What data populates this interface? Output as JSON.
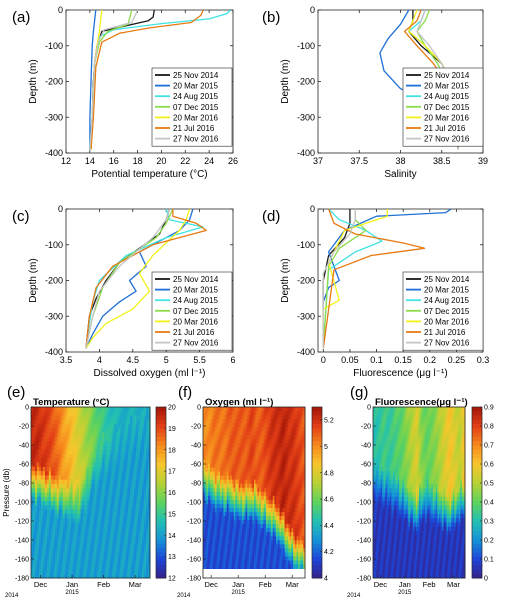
{
  "colors": {
    "series": [
      "#1a1a1a",
      "#1f6fd6",
      "#3fe3e3",
      "#8cdc4a",
      "#f2f21a",
      "#e87a12",
      "#c4c4c4"
    ],
    "colormap": [
      "#35228a",
      "#1d46d9",
      "#1594d6",
      "#22c0b2",
      "#5fd35c",
      "#b9d234",
      "#f8c62c",
      "#f6871c",
      "#e23e16",
      "#a11408"
    ]
  },
  "chart_data": [
    {
      "panel": "(a)",
      "type": "line",
      "xlabel": "Potential temperature (°C)",
      "ylabel": "Depth (m)",
      "xlim": [
        12,
        26
      ],
      "ylim": [
        -400,
        0
      ],
      "xticks": [
        "12",
        "14",
        "16",
        "18",
        "20",
        "22",
        "24",
        "26"
      ],
      "yticks": [
        "0",
        "-100",
        "-200",
        "-300",
        "-400"
      ],
      "legend": "bottom-right",
      "series": [
        {
          "name": "25 Nov 2014",
          "x": [
            19.4,
            19.3,
            18.9,
            15.0,
            14.6,
            14.4,
            14.3,
            14.2,
            14.0
          ],
          "y": [
            0,
            -20,
            -30,
            -60,
            -100,
            -150,
            -200,
            -300,
            -390
          ]
        },
        {
          "name": "20 Mar 2015",
          "x": [
            14.5,
            14.4,
            14.3,
            14.2,
            14.1,
            14.0,
            14.0
          ],
          "y": [
            0,
            -30,
            -60,
            -100,
            -200,
            -300,
            -390
          ]
        },
        {
          "name": "24 Aug 2015",
          "x": [
            25.8,
            25.5,
            24.0,
            20.0,
            16.0,
            14.8,
            14.4,
            14.2,
            14.0
          ],
          "y": [
            0,
            -10,
            -25,
            -38,
            -55,
            -75,
            -150,
            -300,
            -390
          ]
        },
        {
          "name": "07 Dec 2015",
          "x": [
            17.5,
            17.4,
            17.2,
            15.5,
            14.8,
            14.4,
            14.2,
            14.1
          ],
          "y": [
            0,
            -15,
            -40,
            -60,
            -90,
            -150,
            -300,
            -390
          ]
        },
        {
          "name": "20 Mar 2016",
          "x": [
            15.0,
            14.9,
            14.8,
            14.6,
            14.4,
            14.2,
            14.1
          ],
          "y": [
            0,
            -30,
            -60,
            -100,
            -150,
            -300,
            -390
          ]
        },
        {
          "name": "21 Jul 2016",
          "x": [
            23.5,
            23.3,
            22.5,
            19.0,
            16.5,
            15.0,
            14.5,
            14.3,
            14.1
          ],
          "y": [
            0,
            -15,
            -35,
            -50,
            -65,
            -90,
            -160,
            -300,
            -390
          ]
        },
        {
          "name": "27 Nov 2016",
          "x": [
            18.0,
            17.8,
            17.5,
            15.2,
            14.7,
            14.4,
            14.2,
            14.0
          ],
          "y": [
            0,
            -15,
            -35,
            -55,
            -90,
            -150,
            -300,
            -390
          ]
        }
      ]
    },
    {
      "panel": "(b)",
      "type": "line",
      "xlabel": "Salinity",
      "ylabel": "Depth (m)",
      "xlim": [
        37,
        39
      ],
      "ylim": [
        -400,
        0
      ],
      "xticks": [
        "37",
        "37.5",
        "38",
        "38.5",
        "39"
      ],
      "yticks": [
        "0",
        "-100",
        "-200",
        "-300",
        "-400"
      ],
      "legend": "top-right",
      "series": [
        {
          "name": "25 Nov 2014",
          "x": [
            38.15,
            38.15,
            38.1,
            38.25,
            38.5,
            38.6,
            38.65,
            38.7
          ],
          "y": [
            0,
            -30,
            -60,
            -100,
            -150,
            -200,
            -300,
            -390
          ]
        },
        {
          "name": "20 Mar 2015",
          "x": [
            38.1,
            38.0,
            37.85,
            37.75,
            37.8,
            38.0,
            38.3,
            38.6,
            38.7
          ],
          "y": [
            0,
            -40,
            -80,
            -120,
            -170,
            -220,
            -250,
            -300,
            -390
          ]
        },
        {
          "name": "24 Aug 2015",
          "x": [
            38.3,
            38.25,
            38.1,
            38.3,
            38.45,
            38.55,
            38.65,
            38.7
          ],
          "y": [
            0,
            -30,
            -60,
            -100,
            -150,
            -200,
            -300,
            -390
          ]
        },
        {
          "name": "07 Dec 2015",
          "x": [
            38.35,
            38.3,
            38.2,
            38.3,
            38.45,
            38.55,
            38.65,
            38.7
          ],
          "y": [
            0,
            -30,
            -60,
            -100,
            -150,
            -200,
            -300,
            -390
          ]
        },
        {
          "name": "20 Mar 2016",
          "x": [
            38.2,
            38.15,
            38.1,
            38.3,
            38.5,
            38.62,
            38.68,
            38.7
          ],
          "y": [
            0,
            -30,
            -60,
            -100,
            -150,
            -200,
            -300,
            -390
          ]
        },
        {
          "name": "21 Jul 2016",
          "x": [
            38.25,
            38.2,
            38.05,
            38.2,
            38.4,
            38.55,
            38.62,
            38.65,
            38.7
          ],
          "y": [
            0,
            -30,
            -60,
            -100,
            -150,
            -200,
            -250,
            -300,
            -390
          ]
        },
        {
          "name": "27 Nov 2016",
          "x": [
            38.3,
            38.25,
            38.2,
            38.35,
            38.5,
            38.6,
            38.65,
            38.7
          ],
          "y": [
            0,
            -30,
            -60,
            -100,
            -150,
            -200,
            -300,
            -390
          ]
        }
      ]
    },
    {
      "panel": "(c)",
      "type": "line",
      "xlabel": "Dissolved oxygen (ml l⁻¹)",
      "ylabel": "Depth (m)",
      "xlim": [
        3.5,
        6
      ],
      "ylim": [
        -400,
        0
      ],
      "xticks": [
        "3.5",
        "4",
        "4.5",
        "5",
        "5.5",
        "6"
      ],
      "yticks": [
        "0",
        "-100",
        "-200",
        "-300",
        "-400"
      ],
      "legend": "bottom-right",
      "series": [
        {
          "name": "25 Nov 2014",
          "x": [
            5.05,
            5.0,
            4.9,
            4.3,
            4.1,
            3.95,
            3.85,
            3.8
          ],
          "y": [
            0,
            -30,
            -70,
            -150,
            -200,
            -250,
            -300,
            -390
          ]
        },
        {
          "name": "20 Mar 2015",
          "x": [
            5.4,
            5.35,
            5.2,
            4.6,
            4.7,
            4.45,
            4.55,
            4.3,
            4.05,
            3.9,
            3.8
          ],
          "y": [
            0,
            -30,
            -60,
            -120,
            -160,
            -200,
            -230,
            -260,
            -300,
            -350,
            -390
          ]
        },
        {
          "name": "24 Aug 2015",
          "x": [
            5.0,
            5.05,
            5.55,
            5.0,
            4.4,
            4.0,
            3.9,
            3.85,
            3.8
          ],
          "y": [
            0,
            -30,
            -50,
            -80,
            -130,
            -200,
            -260,
            -320,
            -390
          ]
        },
        {
          "name": "07 Dec 2015",
          "x": [
            5.1,
            5.0,
            4.85,
            4.3,
            4.05,
            3.9,
            3.8
          ],
          "y": [
            0,
            -40,
            -80,
            -150,
            -220,
            -300,
            -390
          ]
        },
        {
          "name": "20 Mar 2016",
          "x": [
            5.35,
            5.3,
            5.2,
            4.8,
            4.6,
            4.75,
            4.5,
            4.1,
            3.9,
            3.8
          ],
          "y": [
            0,
            -30,
            -60,
            -130,
            -180,
            -230,
            -280,
            -320,
            -360,
            -390
          ]
        },
        {
          "name": "21 Jul 2016",
          "x": [
            5.1,
            5.1,
            5.45,
            5.6,
            4.8,
            4.2,
            3.95,
            3.85,
            3.8
          ],
          "y": [
            0,
            -20,
            -40,
            -60,
            -100,
            -160,
            -220,
            -300,
            -390
          ]
        },
        {
          "name": "27 Nov 2016",
          "x": [
            5.05,
            5.0,
            4.8,
            4.3,
            4.0,
            3.9,
            3.8
          ],
          "y": [
            0,
            -30,
            -80,
            -160,
            -230,
            -300,
            -390
          ]
        }
      ]
    },
    {
      "panel": "(d)",
      "type": "line",
      "xlabel": "Fluorescence (μg l⁻¹)",
      "ylabel": "Depth (m)",
      "xlim": [
        -0.01,
        0.3
      ],
      "ylim": [
        -400,
        0
      ],
      "xticks": [
        "0",
        "0.05",
        "0.1",
        "0.15",
        "0.2",
        "0.25",
        "0.3"
      ],
      "yticks": [
        "0",
        "-100",
        "-200",
        "-300",
        "-400"
      ],
      "legend": "bottom-right",
      "series": [
        {
          "name": "25 Nov 2014",
          "x": [
            0.05,
            0.05,
            0.04,
            0.01,
            0.0,
            0.0
          ],
          "y": [
            0,
            -40,
            -80,
            -130,
            -200,
            -390
          ]
        },
        {
          "name": "20 Mar 2015",
          "x": [
            0.24,
            0.23,
            0.1,
            0.04,
            0.01,
            0.03,
            0.01,
            0.0,
            0.0
          ],
          "y": [
            0,
            -10,
            -20,
            -60,
            -120,
            -200,
            -220,
            -260,
            -390
          ]
        },
        {
          "name": "24 Aug 2015",
          "x": [
            0.01,
            0.03,
            0.08,
            0.11,
            0.06,
            0.01,
            0.0
          ],
          "y": [
            0,
            -30,
            -60,
            -90,
            -120,
            -170,
            -390
          ]
        },
        {
          "name": "07 Dec 2015",
          "x": [
            0.06,
            0.06,
            0.08,
            0.03,
            0.01,
            0.0
          ],
          "y": [
            0,
            -30,
            -60,
            -110,
            -160,
            -390
          ]
        },
        {
          "name": "20 Mar 2016",
          "x": [
            0.12,
            0.12,
            0.04,
            0.01,
            0.03,
            0.0,
            0.0
          ],
          "y": [
            0,
            -20,
            -60,
            -150,
            -255,
            -280,
            -390
          ]
        },
        {
          "name": "21 Jul 2016",
          "x": [
            0.01,
            0.02,
            0.06,
            0.15,
            0.19,
            0.09,
            0.02,
            0.0
          ],
          "y": [
            0,
            -40,
            -70,
            -95,
            -110,
            -130,
            -170,
            -390
          ]
        },
        {
          "name": "27 Nov 2016",
          "x": [
            0.06,
            0.06,
            0.05,
            0.02,
            0.0,
            0.0
          ],
          "y": [
            0,
            -30,
            -70,
            -120,
            -180,
            -390
          ]
        }
      ]
    },
    {
      "panel": "(e)",
      "type": "heatmap",
      "title": "Temperature (°C)",
      "ylabel": "Pressure (db)",
      "ylim": [
        -180,
        0
      ],
      "clim": [
        12,
        20
      ],
      "xticks": [
        "Dec",
        "Jan",
        "Feb",
        "Mar"
      ],
      "xsub": [
        "",
        "2015",
        "",
        ""
      ],
      "year": "2014",
      "yticks": [
        "0",
        "-20",
        "-40",
        "-60",
        "-80",
        "-100",
        "-120",
        "-140",
        "-160",
        "-180"
      ],
      "cticks": [
        "20",
        "19",
        "18",
        "17",
        "16",
        "15",
        "14",
        "13",
        "12"
      ],
      "surface": [
        19.5,
        19.5,
        19.2,
        19.0,
        18.6,
        18.0,
        17.6,
        17.1,
        16.6,
        16.1,
        15.7,
        15.2,
        14.9,
        14.6,
        14.4,
        14.4,
        14.3,
        14.4,
        14.3,
        14.3
      ],
      "mld": [
        -55,
        -58,
        -62,
        -66,
        -70,
        -72,
        -75,
        -80,
        -78,
        -60,
        -45,
        -35,
        -30,
        -25,
        -20,
        -15,
        -10,
        -8,
        -5,
        -5
      ],
      "deep": 14.0
    },
    {
      "panel": "(f)",
      "type": "heatmap",
      "title": "Oxygen (ml l⁻¹)",
      "ylim": [
        -180,
        0
      ],
      "clim": [
        4,
        5.3
      ],
      "bottom": -170,
      "xticks": [
        "Dec",
        "Jan",
        "Feb",
        "Mar"
      ],
      "xsub": [
        "",
        "2015",
        "",
        ""
      ],
      "year": "2014",
      "yticks": [
        "0",
        "-20",
        "-40",
        "-60",
        "-80",
        "-100",
        "-120",
        "-140",
        "-160",
        "-180"
      ],
      "cticks": [
        "5.2",
        "5",
        "4.8",
        "4.6",
        "4.4",
        "4.2",
        "4"
      ],
      "surface": [
        5.0,
        5.0,
        5.05,
        5.05,
        5.05,
        5.1,
        5.1,
        5.1,
        5.1,
        5.15,
        5.1,
        5.1,
        5.15,
        5.2,
        5.2,
        5.25,
        5.2,
        5.2,
        5.15,
        5.1
      ],
      "mld": [
        -55,
        -60,
        -65,
        -68,
        -70,
        -70,
        -75,
        -78,
        -78,
        -75,
        -80,
        -85,
        -90,
        -95,
        -100,
        -110,
        -120,
        -130,
        -135,
        -140
      ],
      "deep": 4.15
    },
    {
      "panel": "(g)",
      "type": "heatmap",
      "title": "Fluorescence(μg l⁻¹)",
      "ylim": [
        -180,
        0
      ],
      "clim": [
        0,
        0.9
      ],
      "xticks": [
        "Dec",
        "Jan",
        "Feb",
        "Mar"
      ],
      "xsub": [
        "",
        "2015",
        "",
        ""
      ],
      "year": "2014",
      "yticks": [
        "0",
        "-20",
        "-40",
        "-60",
        "-80",
        "-100",
        "-120",
        "-140",
        "-160",
        "-180"
      ],
      "cticks": [
        "0.9",
        "0.8",
        "0.7",
        "0.6",
        "0.5",
        "0.4",
        "0.3",
        "0.2",
        "0.1",
        "0"
      ],
      "surface": [
        0.3,
        0.32,
        0.35,
        0.33,
        0.35,
        0.38,
        0.4,
        0.45,
        0.5,
        0.55,
        0.45,
        0.4,
        0.42,
        0.45,
        0.5,
        0.55,
        0.6,
        0.55,
        0.5,
        0.6
      ],
      "mld": [
        -55,
        -60,
        -62,
        -65,
        -68,
        -70,
        -75,
        -80,
        -85,
        -90,
        -80,
        -75,
        -78,
        -82,
        -85,
        -88,
        -90,
        -85,
        -80,
        -75
      ],
      "deep": 0.06
    }
  ]
}
